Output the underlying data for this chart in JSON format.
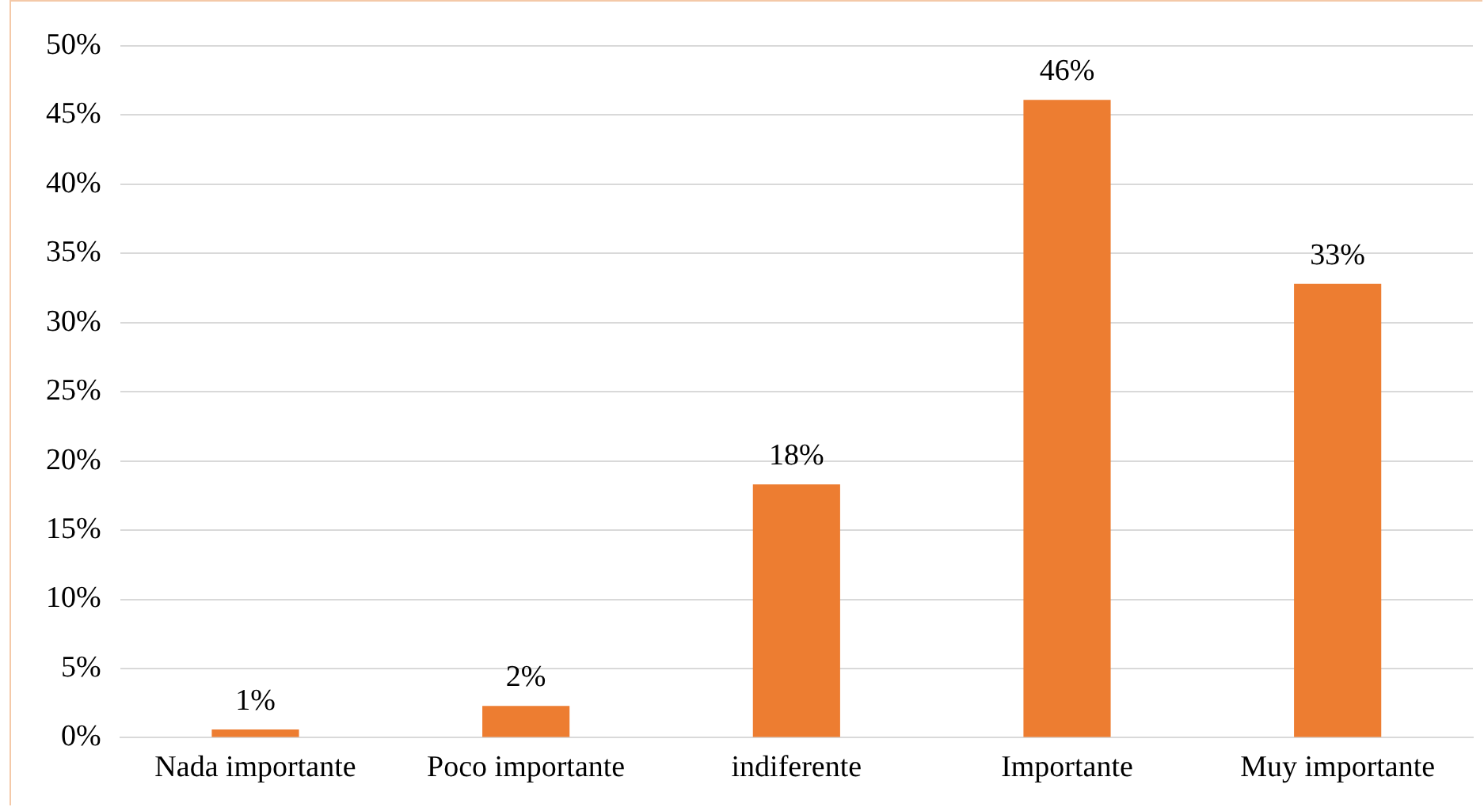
{
  "chart_data": {
    "type": "bar",
    "categories": [
      "Nada importante",
      "Poco importante",
      "indiferente",
      "Importante",
      "Muy importante"
    ],
    "values": [
      0.6,
      2.3,
      18.3,
      46.1,
      32.8
    ],
    "value_labels": [
      "1%",
      "2%",
      "18%",
      "46%",
      "33%"
    ],
    "color": "#ed7d31",
    "ylim": [
      0,
      50
    ],
    "yticks": [
      {
        "value": 0,
        "label": "0%"
      },
      {
        "value": 5,
        "label": "5%"
      },
      {
        "value": 10,
        "label": "10%"
      },
      {
        "value": 15,
        "label": "15%"
      },
      {
        "value": 20,
        "label": "20%"
      },
      {
        "value": 25,
        "label": "25%"
      },
      {
        "value": 30,
        "label": "30%"
      },
      {
        "value": 35,
        "label": "35%"
      },
      {
        "value": 40,
        "label": "40%"
      },
      {
        "value": 45,
        "label": "45%"
      },
      {
        "value": 50,
        "label": "50%"
      }
    ],
    "grid": "y",
    "legend": false
  }
}
